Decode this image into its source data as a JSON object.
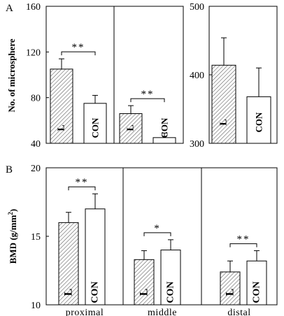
{
  "chart_data": [
    {
      "panel_label": "A",
      "type": "bar",
      "ylabel": "No. of microsphere",
      "axes": [
        {
          "ylim": [
            40,
            160
          ],
          "yticks": [
            "40",
            "80",
            "120",
            "160"
          ],
          "groups": [
            {
              "bars": [
                {
                  "label": "L",
                  "value": 105,
                  "error": 9,
                  "pattern": "hatch"
                },
                {
                  "label": "CON",
                  "value": 75,
                  "error": 7,
                  "pattern": "open"
                }
              ],
              "significance": "**"
            },
            {
              "bars": [
                {
                  "label": "L",
                  "value": 66,
                  "error": 7,
                  "pattern": "hatch"
                },
                {
                  "label": "CON",
                  "value": 45,
                  "error": 4,
                  "pattern": "open"
                }
              ],
              "significance": "**"
            }
          ]
        },
        {
          "ylim": [
            300,
            500
          ],
          "yticks": [
            "300",
            "400",
            "500"
          ],
          "groups": [
            {
              "bars": [
                {
                  "label": "L",
                  "value": 414,
                  "error": 40,
                  "pattern": "hatch"
                },
                {
                  "label": "CON",
                  "value": 368,
                  "error": 42,
                  "pattern": "open"
                }
              ],
              "significance": ""
            }
          ]
        }
      ]
    },
    {
      "panel_label": "B",
      "type": "bar",
      "ylabel": "BMD (g/mm",
      "ylabel_superscript": "2",
      "ylabel_close": ")",
      "ylim": [
        10,
        20
      ],
      "yticks": [
        "10",
        "15",
        "20"
      ],
      "categories": [
        "proximal",
        "middle",
        "distal"
      ],
      "groups": [
        {
          "bars": [
            {
              "label": "L",
              "value": 16.0,
              "error": 0.75,
              "pattern": "hatch"
            },
            {
              "label": "CON",
              "value": 17.0,
              "error": 1.1,
              "pattern": "open"
            }
          ],
          "significance": "**"
        },
        {
          "bars": [
            {
              "label": "L",
              "value": 13.3,
              "error": 0.65,
              "pattern": "hatch"
            },
            {
              "label": "CON",
              "value": 14.0,
              "error": 0.75,
              "pattern": "open"
            }
          ],
          "significance": "*"
        },
        {
          "bars": [
            {
              "label": "L",
              "value": 12.4,
              "error": 0.8,
              "pattern": "hatch"
            },
            {
              "label": "CON",
              "value": 13.2,
              "error": 0.75,
              "pattern": "open"
            }
          ],
          "significance": "**"
        }
      ]
    }
  ]
}
